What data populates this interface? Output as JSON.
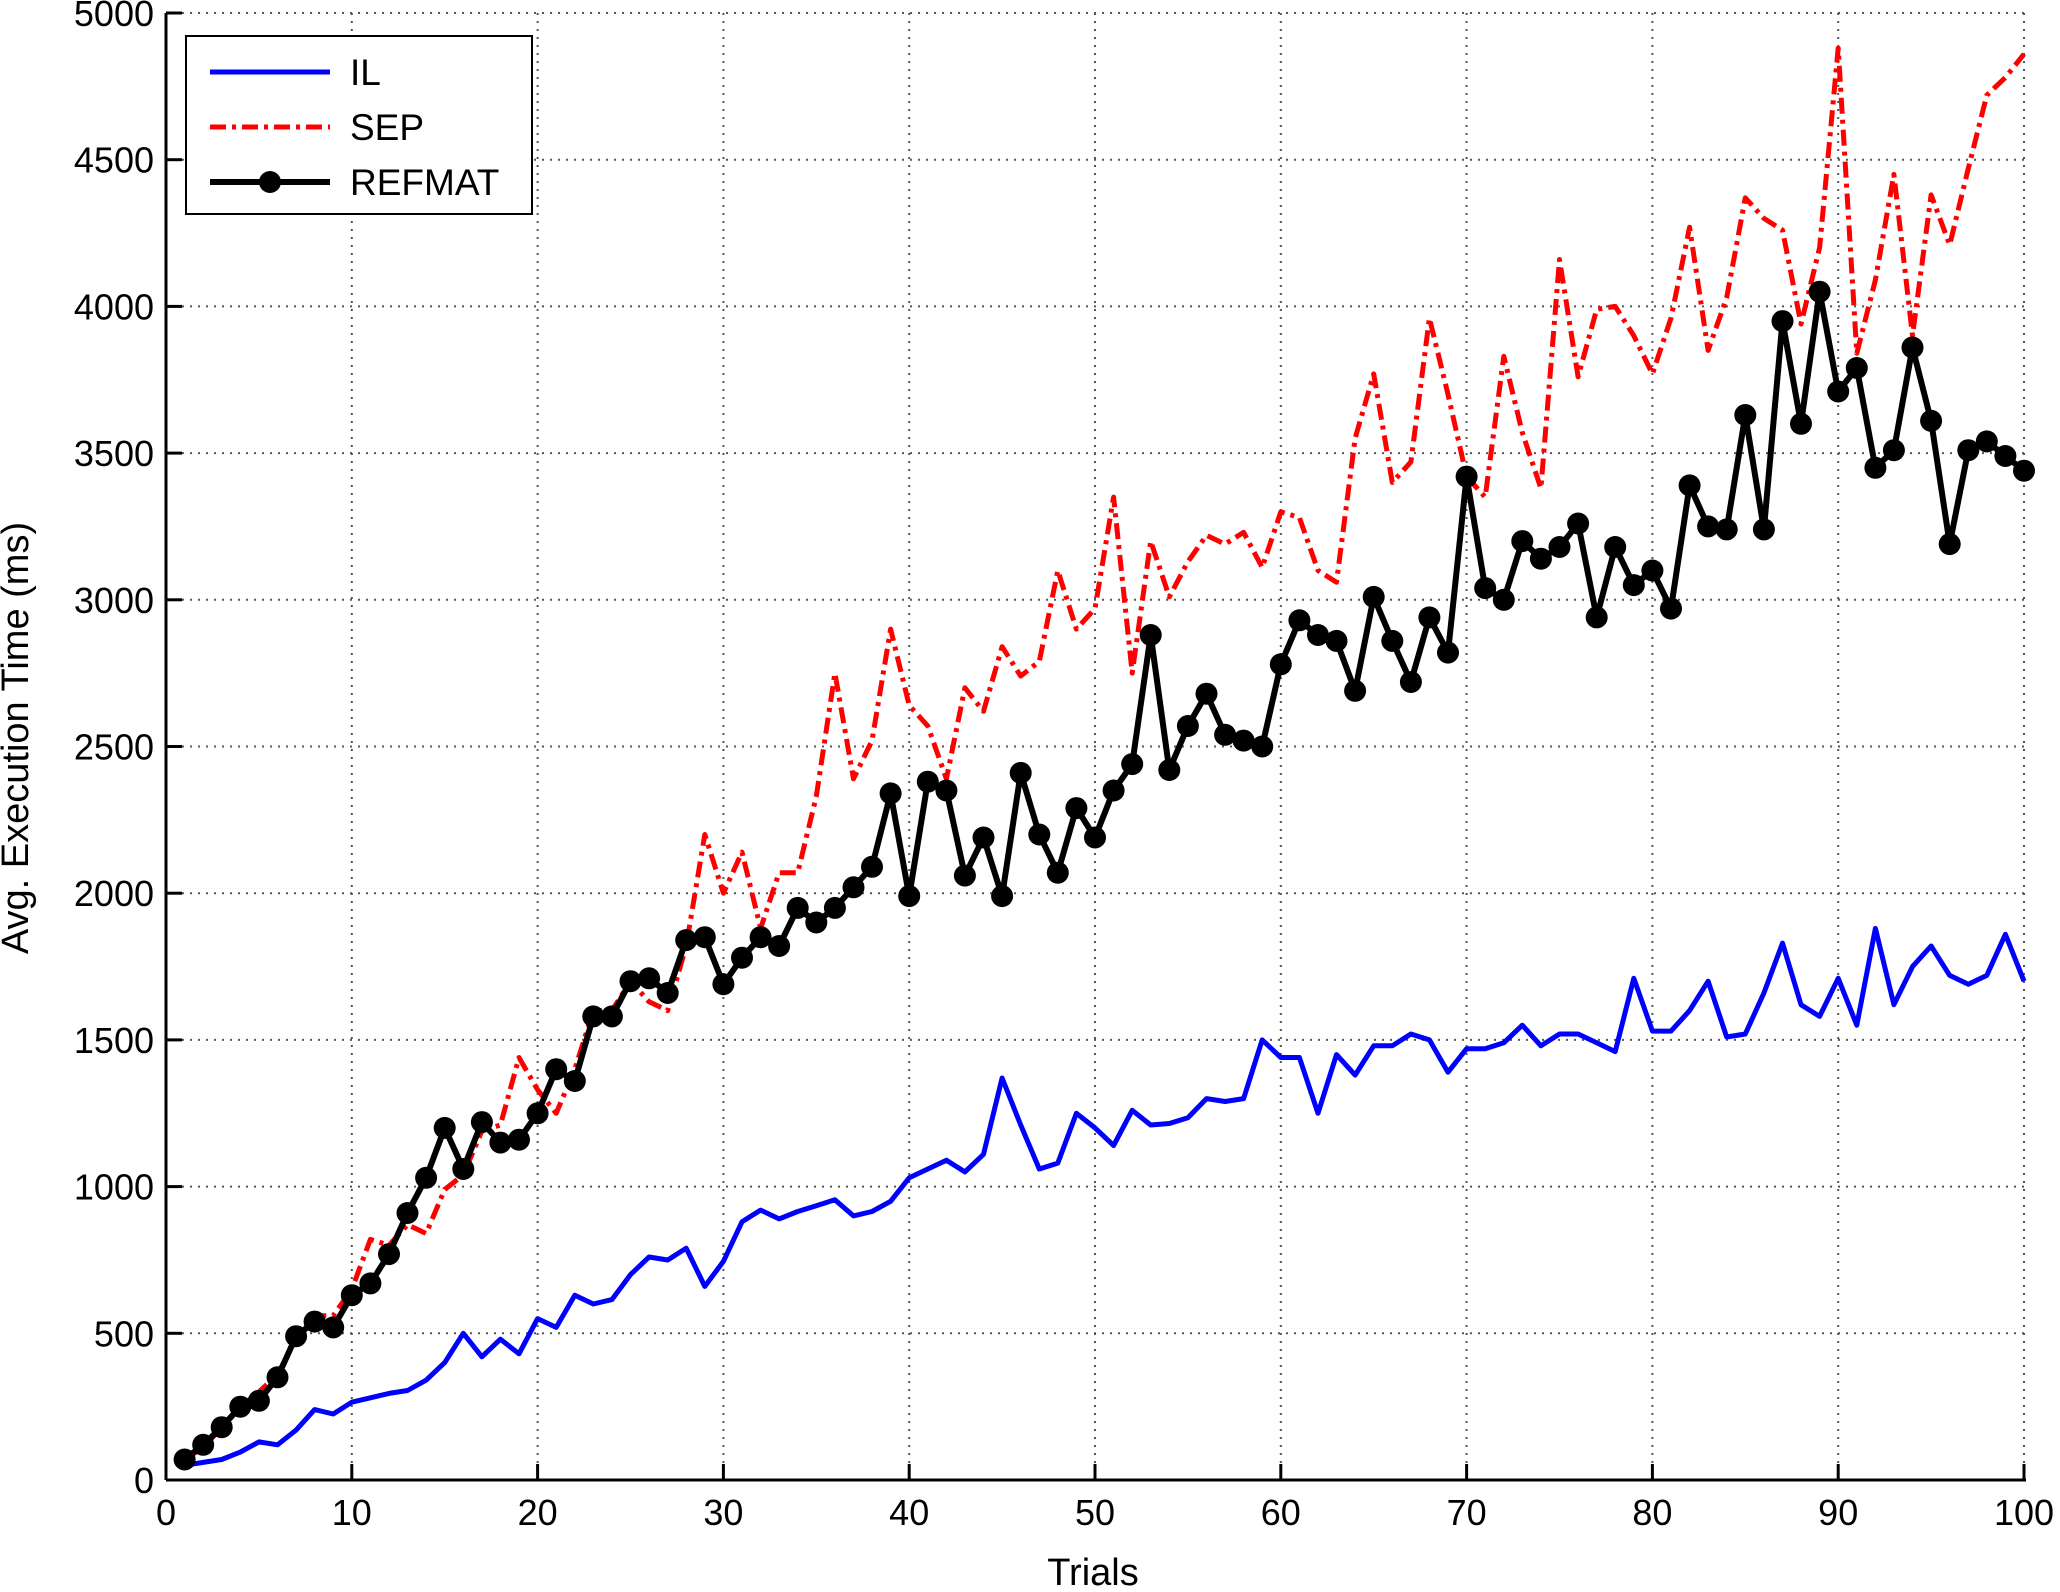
{
  "chart_data": {
    "type": "line",
    "xlabel": "Trials",
    "ylabel": "Avg. Execution Time (ms)",
    "xlim": [
      0,
      100
    ],
    "ylim": [
      0,
      5000
    ],
    "xticks": [
      0,
      10,
      20,
      30,
      40,
      50,
      60,
      70,
      80,
      90,
      100
    ],
    "yticks": [
      0,
      500,
      1000,
      1500,
      2000,
      2500,
      3000,
      3500,
      4000,
      4500,
      5000
    ],
    "grid": true,
    "legend_position": "top-left",
    "x": [
      1,
      2,
      3,
      4,
      5,
      6,
      7,
      8,
      9,
      10,
      11,
      12,
      13,
      14,
      15,
      16,
      17,
      18,
      19,
      20,
      21,
      22,
      23,
      24,
      25,
      26,
      27,
      28,
      29,
      30,
      31,
      32,
      33,
      34,
      35,
      36,
      37,
      38,
      39,
      40,
      41,
      42,
      43,
      44,
      45,
      46,
      47,
      48,
      49,
      50,
      51,
      52,
      53,
      54,
      55,
      56,
      57,
      58,
      59,
      60,
      61,
      62,
      63,
      64,
      65,
      66,
      67,
      68,
      69,
      70,
      71,
      72,
      73,
      74,
      75,
      76,
      77,
      78,
      79,
      80,
      81,
      82,
      83,
      84,
      85,
      86,
      87,
      88,
      89,
      90,
      91,
      92,
      93,
      94,
      95,
      96,
      97,
      98,
      99,
      100
    ],
    "series": [
      {
        "name": "IL",
        "color": "#0000ff",
        "style": "solid",
        "marker": "none",
        "values": [
          50,
          60,
          70,
          95,
          130,
          120,
          170,
          240,
          225,
          265,
          280,
          295,
          305,
          340,
          400,
          500,
          420,
          480,
          430,
          550,
          520,
          630,
          600,
          615,
          700,
          760,
          750,
          790,
          660,
          745,
          880,
          920,
          890,
          915,
          935,
          955,
          900,
          915,
          950,
          1030,
          1060,
          1090,
          1050,
          1110,
          1370,
          1210,
          1060,
          1080,
          1250,
          1200,
          1140,
          1260,
          1210,
          1215,
          1235,
          1300,
          1290,
          1300,
          1500,
          1440,
          1440,
          1250,
          1450,
          1380,
          1480,
          1480,
          1520,
          1500,
          1390,
          1470,
          1470,
          1490,
          1550,
          1480,
          1520,
          1520,
          1490,
          1460,
          1710,
          1530,
          1530,
          1600,
          1700,
          1510,
          1520,
          1660,
          1830,
          1620,
          1580,
          1710,
          1550,
          1880,
          1620,
          1750,
          1820,
          1720,
          1690,
          1720,
          1860,
          1700
        ]
      },
      {
        "name": "SEP",
        "color": "#ff0000",
        "style": "dashdot",
        "marker": "none",
        "values": [
          70,
          110,
          180,
          250,
          300,
          360,
          480,
          560,
          560,
          650,
          820,
          800,
          870,
          840,
          990,
          1040,
          1190,
          1210,
          1440,
          1330,
          1250,
          1400,
          1600,
          1600,
          1700,
          1630,
          1600,
          1820,
          2200,
          2000,
          2140,
          1880,
          2070,
          2070,
          2330,
          2750,
          2390,
          2520,
          2900,
          2640,
          2570,
          2390,
          2700,
          2620,
          2840,
          2740,
          2790,
          3100,
          2900,
          2970,
          3350,
          2750,
          3200,
          3010,
          3130,
          3220,
          3190,
          3230,
          3110,
          3300,
          3280,
          3100,
          3060,
          3550,
          3770,
          3400,
          3470,
          3960,
          3700,
          3420,
          3350,
          3830,
          3570,
          3380,
          4160,
          3760,
          3990,
          4000,
          3900,
          3770,
          3960,
          4270,
          3850,
          4030,
          4370,
          4300,
          4260,
          3940,
          4200,
          4880,
          3840,
          4090,
          4450,
          3900,
          4380,
          4210,
          4470,
          4720,
          4780,
          4860
        ]
      },
      {
        "name": "REFMAT",
        "color": "#000000",
        "style": "solid",
        "marker": "circle",
        "values": [
          70,
          120,
          180,
          250,
          270,
          350,
          490,
          540,
          520,
          630,
          670,
          770,
          910,
          1030,
          1200,
          1060,
          1220,
          1150,
          1160,
          1250,
          1400,
          1360,
          1580,
          1580,
          1700,
          1710,
          1660,
          1840,
          1850,
          1690,
          1780,
          1850,
          1820,
          1950,
          1900,
          1950,
          2020,
          2090,
          2340,
          1990,
          2380,
          2350,
          2060,
          2190,
          1990,
          2410,
          2200,
          2070,
          2290,
          2190,
          2350,
          2440,
          2880,
          2420,
          2570,
          2680,
          2540,
          2520,
          2500,
          2780,
          2930,
          2880,
          2860,
          2690,
          3010,
          2860,
          2720,
          2940,
          2820,
          3420,
          3040,
          3000,
          3200,
          3140,
          3180,
          3260,
          2940,
          3180,
          3050,
          3100,
          2970,
          3390,
          3250,
          3240,
          3630,
          3240,
          3950,
          3600,
          4050,
          3710,
          3790,
          3450,
          3510,
          3860,
          3610,
          3190,
          3510,
          3540,
          3490,
          3440
        ]
      }
    ]
  }
}
